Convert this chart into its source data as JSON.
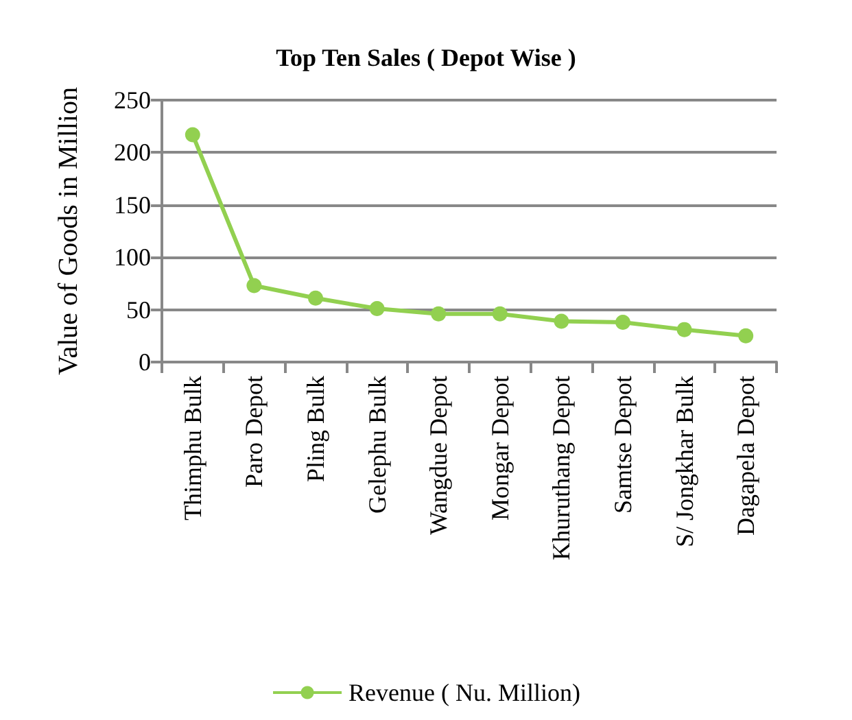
{
  "chart_data": {
    "type": "line",
    "title": "Top Ten Sales ( Depot Wise )",
    "ylabel": "Value of Goods in Million",
    "categories": [
      "Thimphu Bulk",
      "Paro Depot",
      "Pling Bulk",
      "Gelephu Bulk",
      "Wangdue Depot",
      "Mongar Depot",
      "Khuruthang Depot",
      "Samtse Depot",
      "S/ Jongkhar Bulk",
      "Dagapela Depot"
    ],
    "series": [
      {
        "name": "Revenue ( Nu. Million)",
        "color": "#92d050",
        "values": [
          217,
          73,
          61,
          51,
          46,
          46,
          39,
          38,
          31,
          25
        ]
      }
    ],
    "ylim": [
      0,
      250
    ],
    "yticks": [
      0,
      50,
      100,
      150,
      200,
      250
    ],
    "grid": "y",
    "legend": "bottom",
    "marker": "circle",
    "line_style": "solid"
  }
}
